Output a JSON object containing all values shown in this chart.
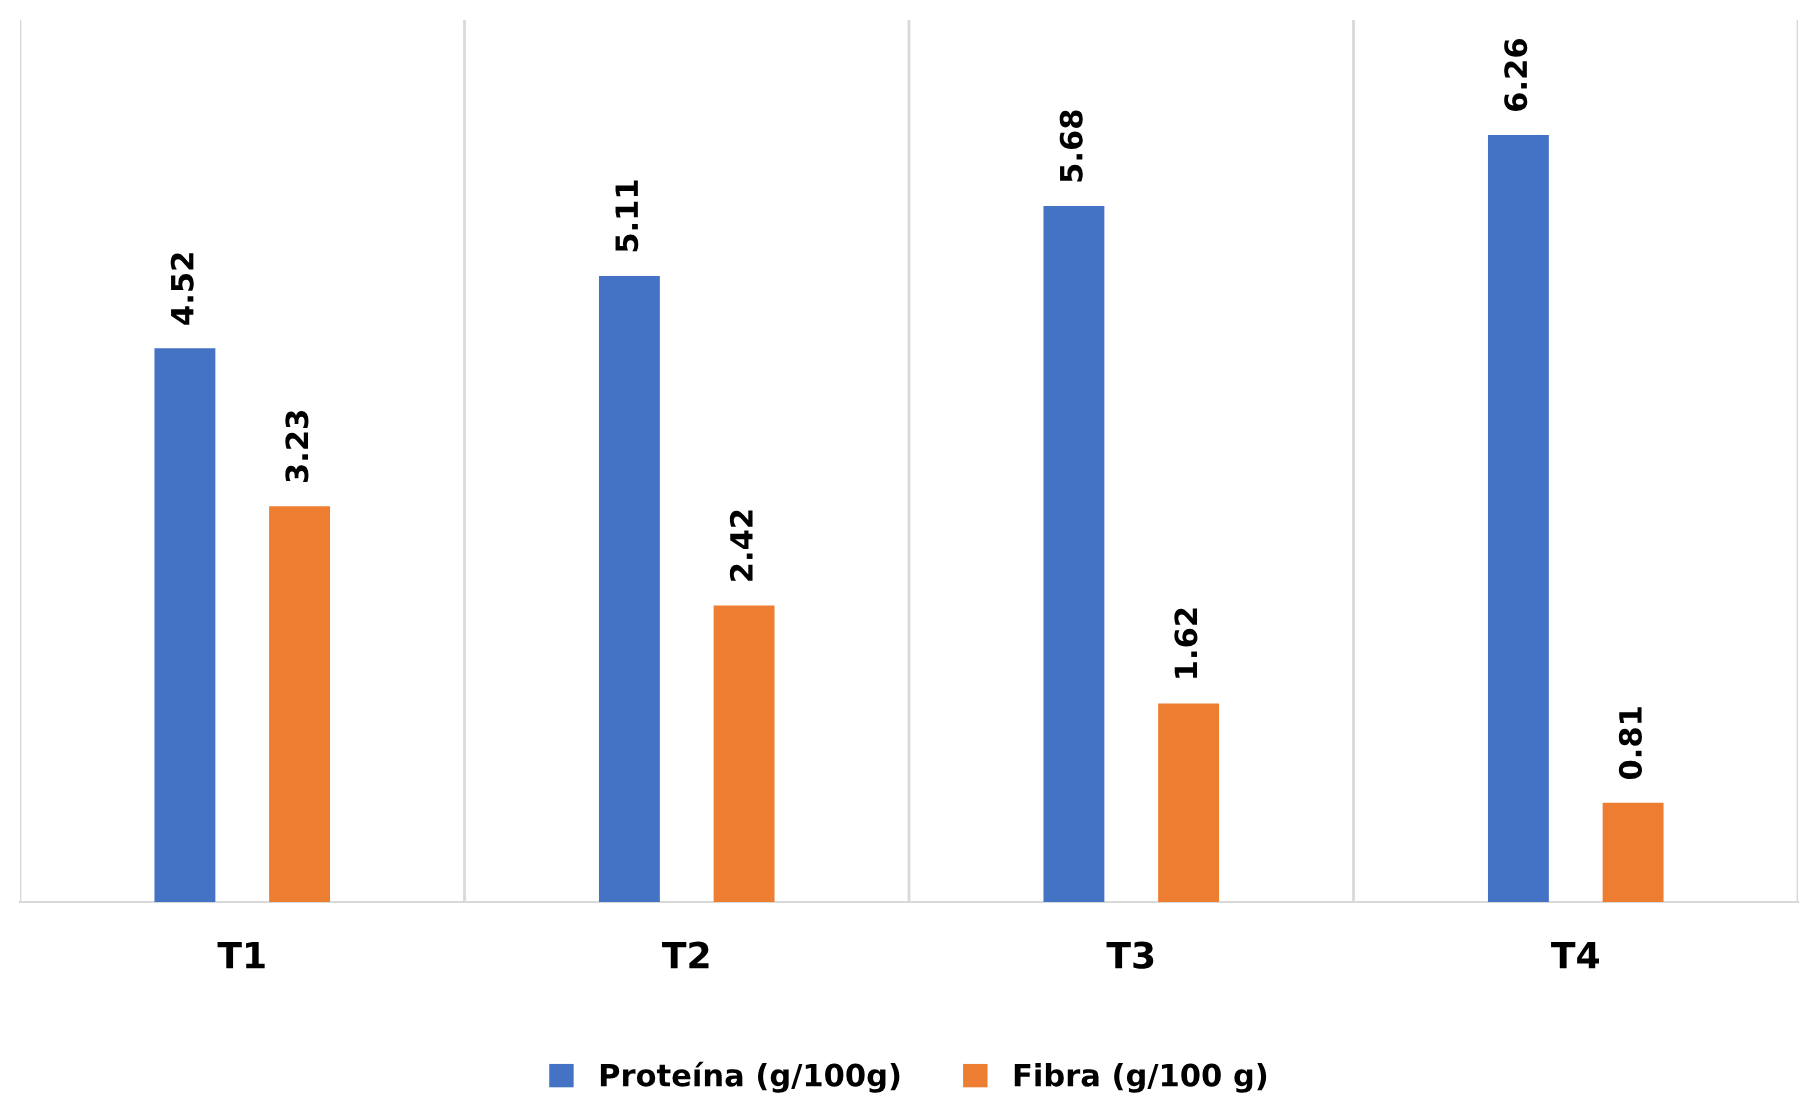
{
  "chart_data": {
    "type": "bar",
    "categories": [
      "T1",
      "T2",
      "T3",
      "T4"
    ],
    "series": [
      {
        "name": "Proteína (g/100g)",
        "color": "#4472c4",
        "values": [
          4.52,
          5.11,
          5.68,
          6.26
        ]
      },
      {
        "name": "Fibra (g/100 g)",
        "color": "#ed7d31",
        "values": [
          3.23,
          2.42,
          1.62,
          0.81
        ]
      }
    ],
    "data_labels": true,
    "grid": "x",
    "legend": "bottom"
  }
}
